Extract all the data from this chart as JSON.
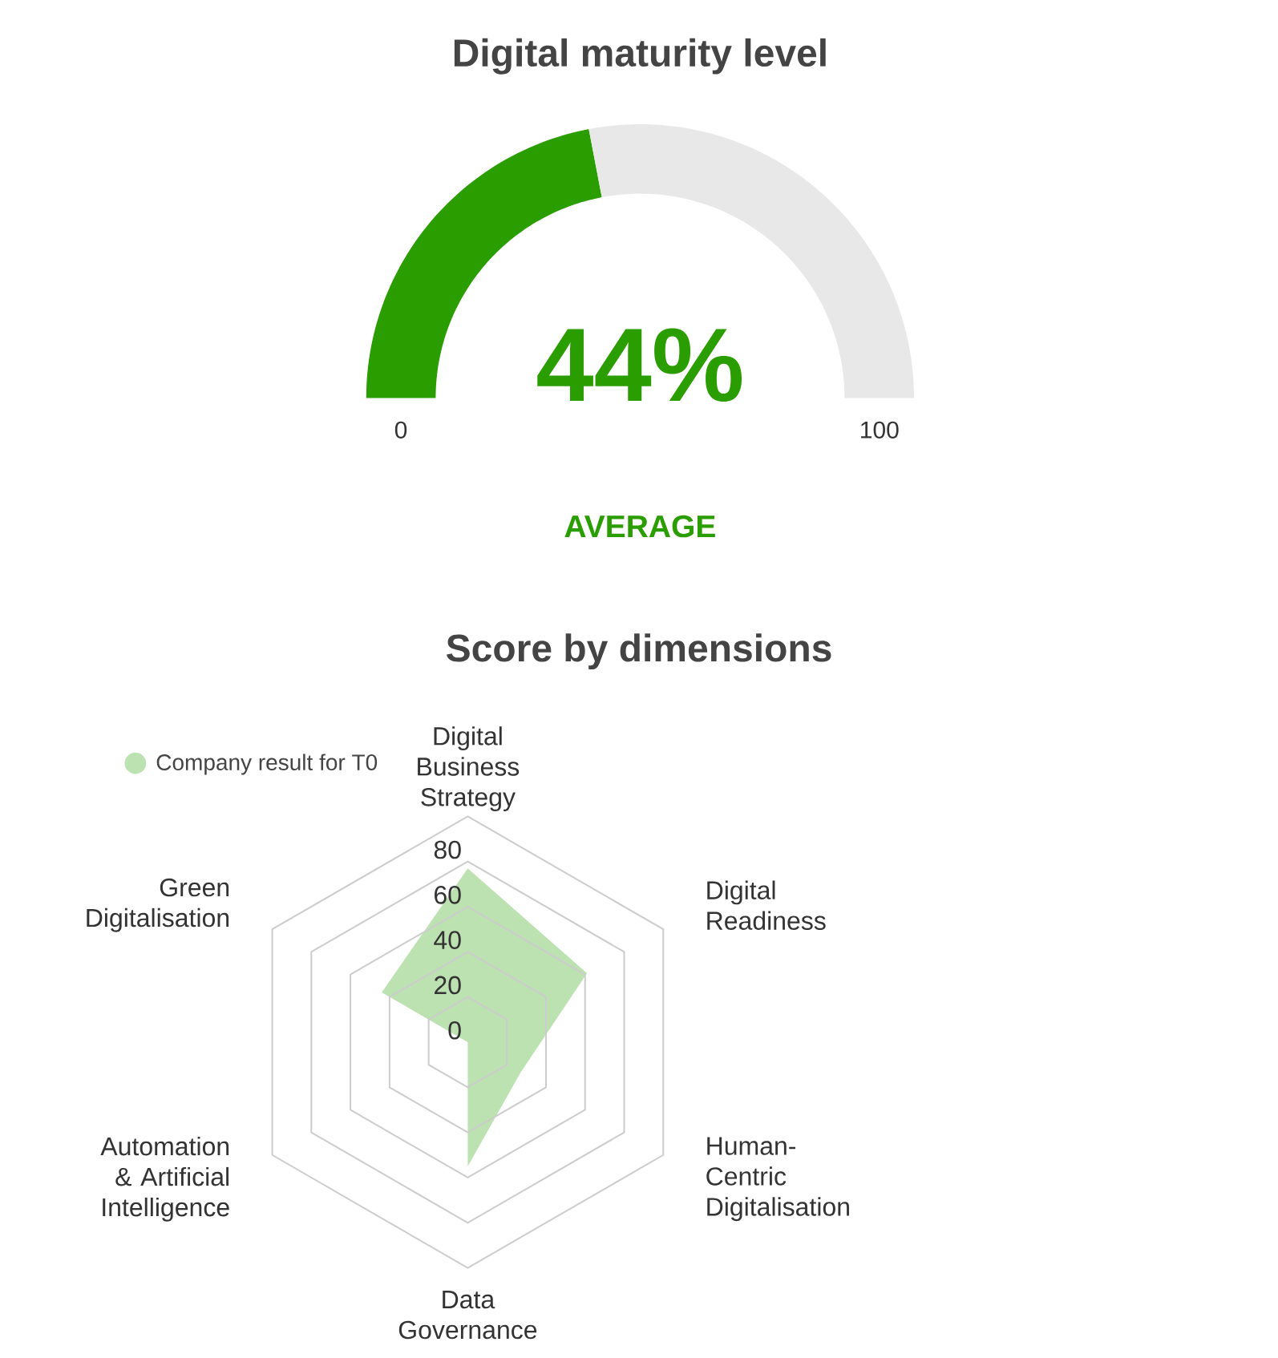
{
  "chart_data": [
    {
      "type": "donut",
      "title": "Digital maturity level",
      "categories": [
        null,
        null
      ],
      "values": [
        44,
        56
      ],
      "colors": [
        "#2a9d00",
        "#e8e8e8"
      ],
      "value_labels": [
        "44%",
        null
      ],
      "annotations": [
        "0",
        "100",
        "AVERAGE"
      ]
    },
    {
      "type": "radar",
      "title": "Score by dimensions",
      "categories": [
        "Digital Business Strategy",
        "Digital Readiness",
        "Human-Centric Digitalisation",
        "Data Governance",
        "Automation & Artificial Intelligence",
        "Green Digitalisation"
      ],
      "series": [
        {
          "name": "Company result for T0",
          "color": "#bde2b1",
          "values": [
            77,
            61,
            27,
            55,
            0,
            44
          ]
        }
      ],
      "ylim": [
        0,
        100
      ],
      "yticks": [
        0,
        20,
        40,
        60,
        80
      ],
      "grid": true,
      "legend": "top left"
    }
  ]
}
